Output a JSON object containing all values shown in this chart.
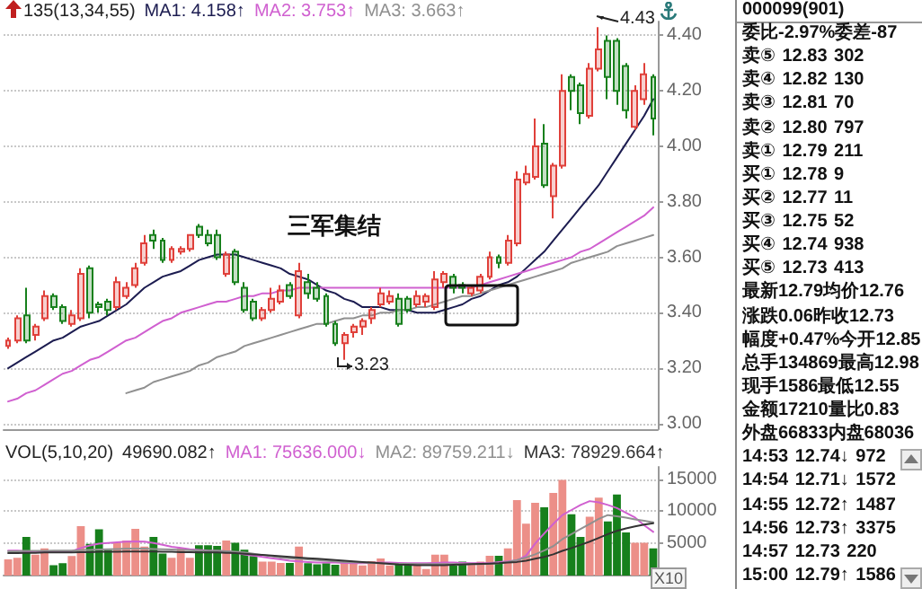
{
  "chart_data": [
    {
      "type": "candlestick",
      "categories": [
        null,
        null,
        null,
        null,
        null,
        null,
        null,
        null,
        null,
        null,
        null,
        null,
        null,
        null,
        null,
        null,
        null,
        null,
        null,
        null,
        null,
        null,
        null,
        null,
        null,
        null,
        null,
        null,
        null,
        null,
        null,
        null,
        null,
        null,
        null,
        null,
        null,
        null,
        null,
        null,
        null,
        null,
        null,
        null,
        null,
        null,
        null,
        null,
        null,
        null,
        null,
        null,
        null,
        null,
        null,
        null,
        null,
        null,
        null,
        null,
        null,
        null,
        null,
        null,
        null,
        null,
        null,
        null,
        null,
        null,
        null,
        null
      ],
      "ohlc": [
        [
          3.28,
          3.31,
          3.27,
          3.3
        ],
        [
          3.3,
          3.39,
          3.29,
          3.38
        ],
        [
          3.39,
          3.49,
          3.29,
          3.3
        ],
        [
          3.32,
          3.36,
          3.3,
          3.35
        ],
        [
          3.38,
          3.48,
          3.37,
          3.46
        ],
        [
          3.46,
          3.47,
          3.41,
          3.42
        ],
        [
          3.42,
          3.43,
          3.36,
          3.37
        ],
        [
          3.36,
          3.41,
          3.35,
          3.39
        ],
        [
          3.38,
          3.56,
          3.37,
          3.54
        ],
        [
          3.56,
          3.57,
          3.38,
          3.4
        ],
        [
          3.43,
          3.44,
          3.4,
          3.42
        ],
        [
          3.44,
          3.45,
          3.39,
          3.41
        ],
        [
          3.42,
          3.53,
          3.41,
          3.51
        ],
        [
          3.46,
          3.51,
          3.45,
          3.49
        ],
        [
          3.5,
          3.58,
          3.49,
          3.56
        ],
        [
          3.58,
          3.68,
          3.57,
          3.65
        ],
        [
          3.68,
          3.7,
          3.63,
          3.66
        ],
        [
          3.66,
          3.67,
          3.58,
          3.59
        ],
        [
          3.59,
          3.64,
          3.58,
          3.63
        ],
        [
          3.62,
          3.64,
          3.61,
          3.63
        ],
        [
          3.63,
          3.68,
          3.62,
          3.68
        ],
        [
          3.71,
          3.72,
          3.67,
          3.68
        ],
        [
          3.68,
          3.7,
          3.64,
          3.65
        ],
        [
          3.68,
          3.7,
          3.59,
          3.6
        ],
        [
          3.54,
          3.62,
          3.53,
          3.61
        ],
        [
          3.62,
          3.63,
          3.5,
          3.51
        ],
        [
          3.49,
          3.51,
          3.4,
          3.41
        ],
        [
          3.44,
          3.45,
          3.37,
          3.38
        ],
        [
          3.38,
          3.42,
          3.37,
          3.41
        ],
        [
          3.41,
          3.49,
          3.4,
          3.45
        ],
        [
          3.44,
          3.5,
          3.43,
          3.48
        ],
        [
          3.5,
          3.51,
          3.45,
          3.46
        ],
        [
          3.39,
          3.58,
          3.38,
          3.55
        ],
        [
          3.51,
          3.54,
          3.45,
          3.47
        ],
        [
          3.49,
          3.51,
          3.44,
          3.45
        ],
        [
          3.46,
          3.47,
          3.35,
          3.36
        ],
        [
          3.36,
          3.37,
          3.28,
          3.29
        ],
        [
          3.29,
          3.33,
          3.23,
          3.32
        ],
        [
          3.33,
          3.36,
          3.31,
          3.35
        ],
        [
          3.35,
          3.38,
          3.32,
          3.37
        ],
        [
          3.38,
          3.42,
          3.36,
          3.41
        ],
        [
          3.43,
          3.49,
          3.42,
          3.47
        ],
        [
          3.44,
          3.48,
          3.43,
          3.46
        ],
        [
          3.45,
          3.47,
          3.35,
          3.36
        ],
        [
          3.45,
          3.46,
          3.4,
          3.41
        ],
        [
          3.43,
          3.48,
          3.42,
          3.46
        ],
        [
          3.44,
          3.47,
          3.42,
          3.46
        ],
        [
          3.42,
          3.55,
          3.41,
          3.52
        ],
        [
          3.51,
          3.55,
          3.49,
          3.54
        ],
        [
          3.53,
          3.54,
          3.47,
          3.49
        ],
        [
          3.5,
          3.51,
          3.47,
          3.49
        ],
        [
          3.47,
          3.5,
          3.46,
          3.49
        ],
        [
          3.48,
          3.54,
          3.47,
          3.53
        ],
        [
          3.53,
          3.62,
          3.52,
          3.6
        ],
        [
          3.6,
          3.61,
          3.56,
          3.58
        ],
        [
          3.58,
          3.68,
          3.57,
          3.66
        ],
        [
          3.65,
          3.91,
          3.64,
          3.88
        ],
        [
          3.87,
          3.93,
          3.86,
          3.9
        ],
        [
          3.89,
          4.1,
          3.88,
          4.0
        ],
        [
          4.01,
          4.08,
          3.85,
          3.86
        ],
        [
          3.82,
          3.94,
          3.74,
          3.93
        ],
        [
          3.93,
          4.26,
          3.92,
          4.2
        ],
        [
          4.25,
          4.26,
          4.13,
          4.2
        ],
        [
          4.22,
          4.23,
          4.08,
          4.12
        ],
        [
          4.11,
          4.3,
          4.1,
          4.28
        ],
        [
          4.28,
          4.43,
          4.27,
          4.35
        ],
        [
          4.38,
          4.4,
          4.17,
          4.25
        ],
        [
          4.38,
          4.39,
          4.15,
          4.2
        ],
        [
          4.29,
          4.3,
          4.1,
          4.13
        ],
        [
          4.07,
          4.22,
          4.06,
          4.2
        ],
        [
          4.17,
          4.3,
          4.15,
          4.26
        ],
        [
          4.25,
          4.26,
          4.04,
          4.1
        ]
      ],
      "colors": [
        "#e0403a",
        "#e0403a",
        "#17801c",
        "#e0403a",
        "#e0403a",
        "#17801c",
        "#17801c",
        "#e0403a",
        "#e0403a",
        "#17801c",
        "#17801c",
        "#17801c",
        "#e0403a",
        "#e0403a",
        "#e0403a",
        "#e0403a",
        "#17801c",
        "#17801c",
        "#e0403a",
        "#e0403a",
        "#e0403a",
        "#17801c",
        "#17801c",
        "#17801c",
        "#e0403a",
        "#17801c",
        "#17801c",
        "#17801c",
        "#e0403a",
        "#e0403a",
        "#e0403a",
        "#17801c",
        "#e0403a",
        "#17801c",
        "#17801c",
        "#17801c",
        "#17801c",
        "#e0403a",
        "#e0403a",
        "#e0403a",
        "#e0403a",
        "#e0403a",
        "#e0403a",
        "#17801c",
        "#17801c",
        "#e0403a",
        "#e0403a",
        "#e0403a",
        "#e0403a",
        "#17801c",
        "#17801c",
        "#e0403a",
        "#e0403a",
        "#e0403a",
        "#17801c",
        "#e0403a",
        "#e0403a",
        "#e0403a",
        "#e0403a",
        "#17801c",
        "#e0403a",
        "#e0403a",
        "#17801c",
        "#17801c",
        "#e0403a",
        "#e0403a",
        "#17801c",
        "#17801c",
        "#17801c",
        "#e0403a",
        "#e0403a",
        "#17801c"
      ],
      "series": [
        {
          "type": "line",
          "color": "#1c1c50",
          "values": [
            3.2,
            3.22,
            3.24,
            3.26,
            3.28,
            3.3,
            3.31,
            3.33,
            3.35,
            3.36,
            3.37,
            3.39,
            3.41,
            3.43,
            3.46,
            3.49,
            3.51,
            3.53,
            3.54,
            3.55,
            3.57,
            3.59,
            3.6,
            3.61,
            3.61,
            3.61,
            3.6,
            3.59,
            3.58,
            3.57,
            3.56,
            3.54,
            3.53,
            3.52,
            3.5,
            3.48,
            3.47,
            3.45,
            3.44,
            3.42,
            3.42,
            3.42,
            3.41,
            3.41,
            3.41,
            3.4,
            3.4,
            3.4,
            3.41,
            3.42,
            3.43,
            3.45,
            3.46,
            3.48,
            3.5,
            3.51,
            3.53,
            3.56,
            3.59,
            3.62,
            3.66,
            3.7,
            3.74,
            3.78,
            3.82,
            3.86,
            3.91,
            3.96,
            4.01,
            4.06,
            4.11,
            4.17
          ]
        },
        {
          "type": "line",
          "color": "#d060d0",
          "values": [
            3.08,
            3.09,
            3.11,
            3.12,
            3.14,
            3.16,
            3.18,
            3.19,
            3.21,
            3.23,
            3.24,
            3.26,
            3.28,
            3.3,
            3.31,
            3.33,
            3.35,
            3.37,
            3.38,
            3.4,
            3.41,
            3.42,
            3.43,
            3.44,
            3.44,
            3.45,
            3.46,
            3.46,
            3.47,
            3.47,
            3.48,
            3.48,
            3.49,
            3.49,
            3.49,
            3.49,
            3.49,
            3.49,
            3.49,
            3.49,
            3.49,
            3.49,
            3.49,
            3.49,
            3.49,
            3.49,
            3.49,
            3.49,
            3.49,
            3.49,
            3.49,
            3.49,
            3.5,
            3.51,
            3.52,
            3.53,
            3.54,
            3.55,
            3.56,
            3.57,
            3.58,
            3.59,
            3.6,
            3.62,
            3.63,
            3.65,
            3.67,
            3.69,
            3.71,
            3.73,
            3.75,
            3.78
          ]
        },
        {
          "type": "line",
          "color": "#909090",
          "values": [
            null,
            null,
            null,
            null,
            null,
            null,
            null,
            null,
            null,
            null,
            null,
            null,
            null,
            3.11,
            3.12,
            3.13,
            3.15,
            3.16,
            3.17,
            3.18,
            3.19,
            3.21,
            3.22,
            3.24,
            3.25,
            3.26,
            3.28,
            3.29,
            3.3,
            3.31,
            3.32,
            3.33,
            3.34,
            3.35,
            3.36,
            3.36,
            3.37,
            3.38,
            3.38,
            3.39,
            3.39,
            3.4,
            3.4,
            3.41,
            3.41,
            3.42,
            3.42,
            3.43,
            3.44,
            3.45,
            3.46,
            3.46,
            3.47,
            3.48,
            3.49,
            3.5,
            3.51,
            3.52,
            3.53,
            3.54,
            3.55,
            3.56,
            3.58,
            3.59,
            3.6,
            3.61,
            3.62,
            3.64,
            3.65,
            3.66,
            3.67,
            3.68
          ]
        }
      ],
      "ylim": [
        2.98,
        4.45
      ],
      "yticks": [
        {
          "value": 3,
          "label": "3.00"
        },
        {
          "value": 3.2,
          "label": "3.20"
        },
        {
          "value": 3.4,
          "label": "3.40"
        },
        {
          "value": 3.6,
          "label": "3.60"
        },
        {
          "value": 3.8,
          "label": "3.80"
        },
        {
          "value": 4,
          "label": "4.00"
        },
        {
          "value": 4.2,
          "label": "4.20"
        },
        {
          "value": 4.4,
          "label": "4.40"
        }
      ],
      "grid": "y",
      "marker": "none",
      "line_style": "solid",
      "annotations": [
        "135(13,34,55)",
        "MA1: 4.158↑",
        "MA2: 3.753↑",
        "MA3: 3.663↑",
        "三军集结",
        "4.43",
        "3.23"
      ]
    },
    {
      "type": "bar",
      "categories": [
        null,
        null,
        null,
        null,
        null,
        null,
        null,
        null,
        null,
        null,
        null,
        null,
        null,
        null,
        null,
        null,
        null,
        null,
        null,
        null,
        null,
        null,
        null,
        null,
        null,
        null,
        null,
        null,
        null,
        null,
        null,
        null,
        null,
        null,
        null,
        null,
        null,
        null,
        null,
        null,
        null,
        null,
        null,
        null,
        null,
        null,
        null,
        null,
        null,
        null,
        null,
        null,
        null,
        null,
        null,
        null,
        null,
        null,
        null,
        null,
        null,
        null,
        null,
        null,
        null,
        null,
        null,
        null,
        null,
        null,
        null,
        null
      ],
      "values": [
        2250,
        2500,
        5800,
        3000,
        4000,
        1350,
        1650,
        2800,
        7500,
        4700,
        7000,
        3750,
        4900,
        5250,
        7100,
        4300,
        5800,
        3200,
        2500,
        4000,
        2500,
        4500,
        4500,
        4400,
        5250,
        4900,
        3800,
        2800,
        1900,
        1900,
        1700,
        1700,
        4300,
        1650,
        1500,
        1650,
        1400,
        1900,
        1700,
        1300,
        2000,
        2400,
        1300,
        1400,
        1700,
        1400,
        750,
        3000,
        3000,
        1300,
        1900,
        1700,
        1900,
        2850,
        2850,
        4000,
        11600,
        7900,
        11200,
        10500,
        12750,
        14800,
        9400,
        5800,
        9000,
        12000,
        8250,
        12500,
        6500,
        4900,
        4900,
        4000
      ],
      "colors": [
        "#ec8f88",
        "#ec8f88",
        "#17801c",
        "#ec8f88",
        "#ec8f88",
        "#17801c",
        "#17801c",
        "#ec8f88",
        "#ec8f88",
        "#17801c",
        "#17801c",
        "#17801c",
        "#ec8f88",
        "#ec8f88",
        "#ec8f88",
        "#ec8f88",
        "#17801c",
        "#17801c",
        "#ec8f88",
        "#ec8f88",
        "#ec8f88",
        "#17801c",
        "#17801c",
        "#17801c",
        "#ec8f88",
        "#17801c",
        "#17801c",
        "#17801c",
        "#ec8f88",
        "#ec8f88",
        "#ec8f88",
        "#17801c",
        "#ec8f88",
        "#17801c",
        "#17801c",
        "#17801c",
        "#17801c",
        "#ec8f88",
        "#ec8f88",
        "#ec8f88",
        "#ec8f88",
        "#ec8f88",
        "#ec8f88",
        "#17801c",
        "#17801c",
        "#ec8f88",
        "#ec8f88",
        "#ec8f88",
        "#ec8f88",
        "#17801c",
        "#17801c",
        "#ec8f88",
        "#ec8f88",
        "#ec8f88",
        "#17801c",
        "#ec8f88",
        "#ec8f88",
        "#ec8f88",
        "#ec8f88",
        "#17801c",
        "#ec8f88",
        "#ec8f88",
        "#17801c",
        "#17801c",
        "#ec8f88",
        "#ec8f88",
        "#17801c",
        "#17801c",
        "#17801c",
        "#ec8f88",
        "#ec8f88",
        "#17801c"
      ],
      "series": [
        {
          "type": "line",
          "color": "#d060d0",
          "values": [
            3800,
            3800,
            3700,
            3700,
            3700,
            3600,
            3600,
            3700,
            4200,
            4600,
            4900,
            5000,
            5100,
            5200,
            5250,
            5200,
            5000,
            4700,
            4400,
            4200,
            4000,
            3900,
            3800,
            3750,
            3700,
            3500,
            3200,
            3000,
            2800,
            2600,
            2400,
            2200,
            2100,
            2000,
            1900,
            1900,
            1900,
            1850,
            1800,
            1800,
            1850,
            1900,
            1900,
            1850,
            1800,
            1800,
            1800,
            1850,
            1900,
            1900,
            1850,
            1800,
            1800,
            1800,
            2000,
            2100,
            2250,
            3000,
            4900,
            6500,
            8000,
            9400,
            10200,
            11000,
            11600,
            11400,
            11000,
            10500,
            9750,
            9000,
            7800,
            6750
          ]
        },
        {
          "type": "line",
          "color": "#909090",
          "values": [
            3700,
            3700,
            3750,
            3750,
            3750,
            3800,
            3800,
            3800,
            3850,
            3900,
            3950,
            4000,
            4050,
            4100,
            4100,
            4100,
            4050,
            4000,
            3950,
            3900,
            3850,
            3800,
            3750,
            3750,
            3700,
            3600,
            3500,
            3300,
            3100,
            2900,
            2700,
            2600,
            2500,
            2400,
            2300,
            2200,
            2100,
            2000,
            1950,
            1900,
            1850,
            1800,
            1750,
            1700,
            1700,
            1650,
            1650,
            1650,
            1650,
            1650,
            1650,
            1650,
            1650,
            1700,
            1800,
            2000,
            2300,
            2700,
            3200,
            3800,
            4500,
            5600,
            6400,
            7200,
            8000,
            8800,
            9400,
            9200,
            9000,
            8700,
            8500,
            8250
          ]
        },
        {
          "type": "line",
          "color": "#333333",
          "values": [
            3400,
            3400,
            3450,
            3450,
            3500,
            3500,
            3500,
            3500,
            3550,
            3550,
            3600,
            3600,
            3600,
            3650,
            3650,
            3650,
            3650,
            3600,
            3600,
            3550,
            3550,
            3500,
            3500,
            3500,
            3450,
            3400,
            3300,
            3200,
            3100,
            3000,
            2900,
            2800,
            2700,
            2600,
            2500,
            2400,
            2300,
            2200,
            2100,
            2000,
            1900,
            1800,
            1700,
            1600,
            1550,
            1500,
            1500,
            1500,
            1500,
            1550,
            1600,
            1650,
            1700,
            1750,
            1800,
            1900,
            2000,
            2200,
            2500,
            2800,
            3200,
            3750,
            4200,
            4700,
            5200,
            5800,
            6400,
            6900,
            7300,
            7600,
            7900,
            8100
          ]
        }
      ],
      "ylim": [
        0,
        17000
      ],
      "yticks": [
        {
          "value": 0,
          "label": null
        },
        5000,
        10000,
        15000
      ],
      "grid": "y",
      "marker": "none",
      "line_style": "solid",
      "annotations": [
        "VOL(5,10,20)",
        "49690.082↑",
        "MA1: 75636.000↓",
        "MA2: 89759.211↓",
        "MA3: 78929.664↑",
        "X10"
      ]
    },
    {
      "type": "other",
      "title": "000099(901)",
      "annotations": [
        "委比-2.97%委差-87",
        "卖⑤ 12.83 302",
        "卖④ 12.82 130",
        "卖③ 12.81 70",
        "卖② 12.80 797",
        "卖① 12.79 211",
        "买① 12.78 9",
        "买② 12.77 11",
        "买③ 12.75 52",
        "买④ 12.74 938",
        "买⑤ 12.73 413",
        "最新12.79均价12.76",
        "涨跌0.06昨收12.73",
        "幅度+0.47%今开12.85",
        "总手134869最高12.98",
        "现手1586最低12.55",
        "金额17210量比0.83",
        "外盘66833内盘68036",
        "14:53 12.74↓ 972",
        "14:54 12.71↓ 1572",
        "14:55 12.72↑ 1487",
        "14:56 12.73↑ 3375",
        "14:57 12.73 220",
        "15:00 12.79↑ 1586"
      ]
    }
  ]
}
